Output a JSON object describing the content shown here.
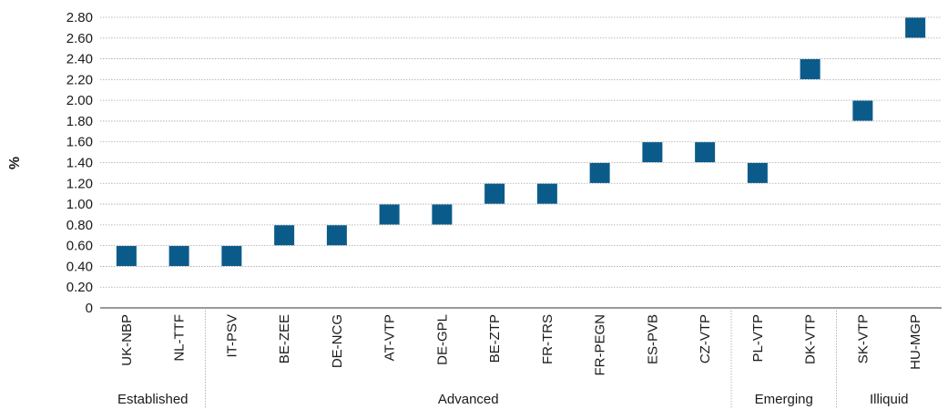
{
  "chart_data": {
    "type": "scatter",
    "ylabel": "%",
    "ylim": [
      0,
      2.8
    ],
    "yticks": [
      "0",
      "0.20",
      "0.40",
      "0.60",
      "0.80",
      "1.00",
      "1.20",
      "1.40",
      "1.60",
      "1.80",
      "2.00",
      "2.20",
      "2.40",
      "2.60",
      "2.80"
    ],
    "categories": [
      "UK-NBP",
      "NL-TTF",
      "IT-PSV",
      "BE-ZEE",
      "DE-NCG",
      "AT-VTP",
      "DE-GPL",
      "BE-ZTP",
      "FR-TRS",
      "FR-PEGN",
      "ES-PVB",
      "CZ-VTP",
      "PL-VTP",
      "DK-VTP",
      "SK-VTP",
      "HU-MGP"
    ],
    "values": [
      0.5,
      0.5,
      0.5,
      0.7,
      0.7,
      0.9,
      0.9,
      1.1,
      1.1,
      1.3,
      1.5,
      1.5,
      1.3,
      2.3,
      1.9,
      2.7
    ],
    "groups": [
      {
        "label": "Established",
        "count": 2
      },
      {
        "label": "Advanced",
        "count": 10
      },
      {
        "label": "Emerging",
        "count": 2
      },
      {
        "label": "Illiquid",
        "count": 2
      }
    ],
    "marker_color": "#0b5b8a",
    "grid": true
  }
}
